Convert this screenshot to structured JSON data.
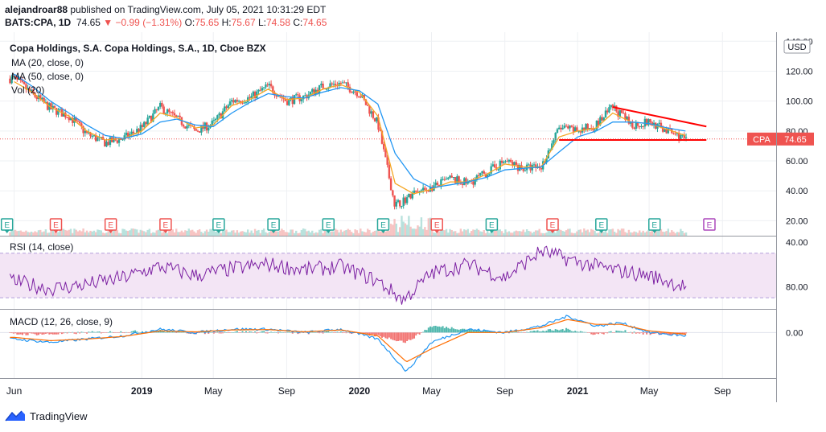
{
  "header": {
    "author": "alejandroar88",
    "published": " published on TradingView.com, July 05, 2021 10:31:29 EDT",
    "symbol_line": "BATS:CPA, 1D",
    "last": "74.65",
    "change": "▼ −0.99 (−1.31%)",
    "o_label": "O:",
    "o": "75.65",
    "h_label": "H:",
    "h": "75.67",
    "l_label": "L:",
    "l": "74.58",
    "c_label": "C:",
    "c": "74.65"
  },
  "legend": {
    "title": "Copa Holdings, S.A. Copa Holdings, S.A., 1D, Cboe BZX",
    "ma20": "MA (20, close, 0)",
    "ma50": "MA (50, close, 0)",
    "vol": "Vol (20)",
    "rsi": "RSI (14, close)",
    "macd": "MACD (12, 26, close, 9)"
  },
  "price_axis": {
    "currency": "USD",
    "ticks": [
      "140.00",
      "120.00",
      "100.00",
      "80.00",
      "60.00",
      "40.00",
      "20.00"
    ],
    "last_label": "CPA",
    "last_value": "74.65"
  },
  "rsi_axis": {
    "ticks": [
      "80.00",
      "40.00"
    ]
  },
  "macd_axis": {
    "ticks": [
      "0.00"
    ]
  },
  "time_axis": [
    "Jun",
    "2019",
    "May",
    "Sep",
    "2020",
    "May",
    "Sep",
    "2021",
    "May",
    "Sep"
  ],
  "events_label": "E",
  "brand": "TradingView",
  "colors": {
    "up": "#26a69a",
    "down": "#ef5350",
    "ma20": "#f5a623",
    "ma50": "#2196f3",
    "rsi": "#7b1fa2",
    "rsi_band": "#f3e5f5",
    "macd": "#2196f3",
    "signal": "#ff6d00",
    "trendline": "#ff0000",
    "last_price": "#ef5350"
  },
  "chart_data": [
    {
      "type": "line",
      "title": "Copa Holdings, S.A. Copa Holdings, S.A., 1D, Cboe BZX",
      "subtype": "candlestick with moving averages",
      "x": [
        "2018-06-01",
        "2018-07-01",
        "2018-08-01",
        "2018-09-01",
        "2018-10-01",
        "2018-11-01",
        "2018-12-01",
        "2019-01-01",
        "2019-02-01",
        "2019-03-01",
        "2019-04-01",
        "2019-05-01",
        "2019-06-01",
        "2019-07-01",
        "2019-08-01",
        "2019-09-01",
        "2019-10-01",
        "2019-11-01",
        "2019-12-01",
        "2020-01-01",
        "2020-02-01",
        "2020-03-01",
        "2020-04-01",
        "2020-05-01",
        "2020-06-01",
        "2020-07-01",
        "2020-08-01",
        "2020-09-01",
        "2020-10-01",
        "2020-11-01",
        "2020-12-01",
        "2021-01-01",
        "2021-02-01",
        "2021-03-01",
        "2021-04-01",
        "2021-05-01",
        "2021-06-01",
        "2021-07-01"
      ],
      "series": [
        {
          "name": "CPA",
          "values": [
            115,
            105,
            95,
            90,
            78,
            72,
            75,
            82,
            96,
            88,
            80,
            85,
            100,
            102,
            110,
            100,
            103,
            110,
            112,
            105,
            85,
            30,
            38,
            42,
            48,
            45,
            52,
            60,
            55,
            56,
            82,
            80,
            84,
            96,
            84,
            86,
            80,
            74.65
          ]
        },
        {
          "name": "MA (20, close, 0)",
          "values": [
            113,
            106,
            96,
            90,
            80,
            74,
            75,
            80,
            92,
            89,
            82,
            84,
            97,
            101,
            108,
            101,
            102,
            108,
            111,
            106,
            90,
            45,
            38,
            41,
            46,
            46,
            51,
            58,
            56,
            56,
            76,
            80,
            82,
            92,
            86,
            85,
            81,
            77
          ]
        },
        {
          "name": "MA (50, close, 0)",
          "values": [
            118,
            110,
            100,
            92,
            84,
            77,
            75,
            78,
            86,
            88,
            84,
            83,
            92,
            99,
            105,
            103,
            102,
            106,
            109,
            107,
            98,
            65,
            48,
            42,
            44,
            46,
            49,
            54,
            55,
            56,
            66,
            76,
            80,
            86,
            86,
            85,
            82,
            80
          ]
        }
      ],
      "ylim": [
        10,
        145
      ],
      "yticks": [
        20,
        40,
        60,
        80,
        100,
        120,
        140
      ],
      "last_price": 74.65,
      "annotations": {
        "resistance_trendline": {
          "from": [
            "2021-03-01",
            96
          ],
          "to": [
            "2021-08-05",
            83
          ]
        },
        "support_line": {
          "from": [
            "2020-12-01",
            74
          ],
          "to": [
            "2021-08-05",
            74
          ]
        }
      },
      "earnings_events": [
        {
          "date": "2018-05-20",
          "kind": "up"
        },
        {
          "date": "2018-08-10",
          "kind": "down"
        },
        {
          "date": "2018-11-10",
          "kind": "down"
        },
        {
          "date": "2019-02-10",
          "kind": "down"
        },
        {
          "date": "2019-05-10",
          "kind": "up"
        },
        {
          "date": "2019-08-10",
          "kind": "up"
        },
        {
          "date": "2019-11-10",
          "kind": "up"
        },
        {
          "date": "2020-02-10",
          "kind": "up"
        },
        {
          "date": "2020-05-10",
          "kind": "down"
        },
        {
          "date": "2020-08-10",
          "kind": "up"
        },
        {
          "date": "2020-11-20",
          "kind": "down"
        },
        {
          "date": "2021-02-10",
          "kind": "up"
        },
        {
          "date": "2021-05-10",
          "kind": "up"
        },
        {
          "date": "2021-08-10",
          "kind": "upcoming"
        }
      ],
      "grid": true
    },
    {
      "type": "line",
      "title": "RSI (14, close)",
      "x": [
        "2018-06-01",
        "2018-08-01",
        "2018-10-01",
        "2018-12-01",
        "2019-02-01",
        "2019-04-01",
        "2019-06-01",
        "2019-08-01",
        "2019-10-01",
        "2019-12-01",
        "2020-02-01",
        "2020-03-15",
        "2020-05-01",
        "2020-07-01",
        "2020-09-01",
        "2020-11-01",
        "2021-01-01",
        "2021-03-01",
        "2021-05-01",
        "2021-07-01"
      ],
      "series": [
        {
          "name": "RSI (14, close)",
          "values": [
            45,
            38,
            42,
            48,
            58,
            50,
            56,
            60,
            55,
            58,
            45,
            28,
            52,
            60,
            48,
            72,
            62,
            55,
            50,
            40
          ]
        }
      ],
      "ylim": [
        20,
        85
      ],
      "yticks": [
        40,
        80
      ],
      "band": [
        30,
        70
      ]
    },
    {
      "type": "line",
      "title": "MACD (12, 26, close, 9)",
      "x": [
        "2018-06-01",
        "2018-08-01",
        "2018-10-01",
        "2018-12-01",
        "2019-02-01",
        "2019-04-01",
        "2019-06-01",
        "2019-08-01",
        "2019-10-01",
        "2019-12-01",
        "2020-02-01",
        "2020-03-20",
        "2020-05-01",
        "2020-07-01",
        "2020-09-01",
        "2020-11-01",
        "2020-12-15",
        "2021-02-01",
        "2021-03-15",
        "2021-05-01",
        "2021-07-01"
      ],
      "series": [
        {
          "name": "MACD",
          "values": [
            -2,
            -3,
            -2,
            -1,
            1,
            0,
            1,
            1,
            0,
            1,
            -2,
            -12,
            -3,
            1,
            0,
            2,
            5,
            2,
            3,
            0,
            -1
          ]
        },
        {
          "name": "Signal",
          "values": [
            -1.5,
            -2.5,
            -2,
            -1.2,
            0.5,
            0.2,
            0.8,
            0.9,
            0.2,
            0.8,
            -1,
            -9,
            -5,
            0,
            0,
            1.5,
            4,
            2.5,
            2.5,
            0.5,
            -0.5
          ]
        }
      ],
      "ylim": [
        -14,
        7
      ],
      "yticks": [
        0
      ]
    }
  ]
}
